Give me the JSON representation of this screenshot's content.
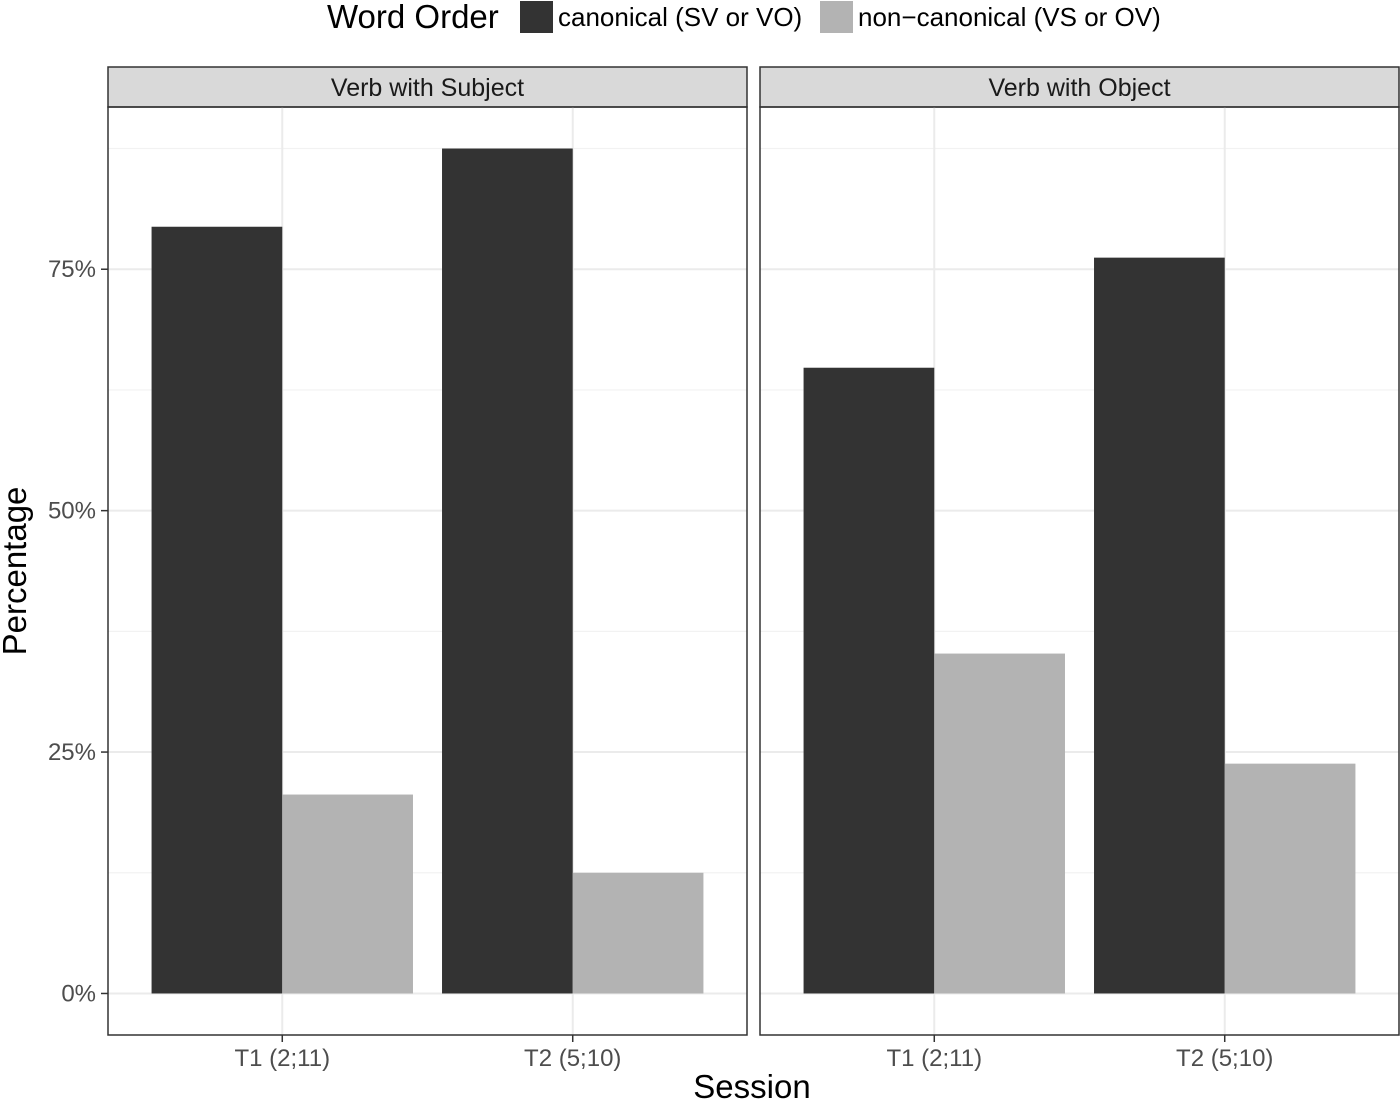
{
  "chart_data": {
    "type": "bar",
    "layout": "faceted-grouped",
    "facets": [
      "Verb with Subject",
      "Verb with Object"
    ],
    "categories": [
      "T1 (2;11)",
      "T2 (5;10)"
    ],
    "series": [
      {
        "name": "canonical (SV or VO)",
        "color": "#333333",
        "values": {
          "Verb with Subject": [
            79.4,
            87.5
          ],
          "Verb with Object": [
            64.8,
            76.2
          ]
        }
      },
      {
        "name": "non−canonical (VS or OV)",
        "color": "#b3b3b3",
        "values": {
          "Verb with Subject": [
            20.6,
            12.5
          ],
          "Verb with Object": [
            35.2,
            23.8
          ]
        }
      }
    ],
    "legend": {
      "title": "Word Order",
      "position": "top"
    },
    "xlabel": "Session",
    "ylabel": "Percentage",
    "ylim": [
      -4.3,
      91.8
    ],
    "yticks": [
      0,
      25,
      50,
      75
    ],
    "ytick_labels": [
      "0%",
      "25%",
      "50%",
      "75%"
    ],
    "grid": true
  }
}
